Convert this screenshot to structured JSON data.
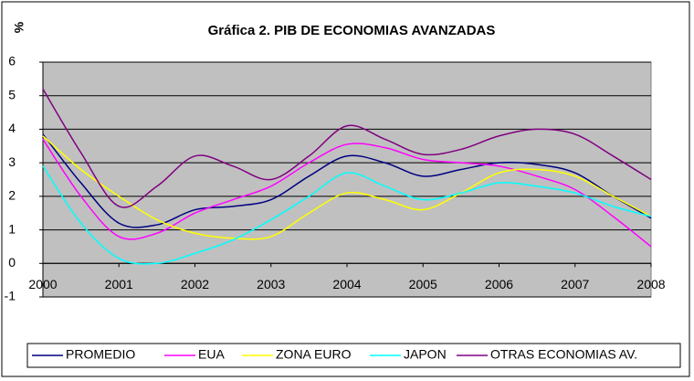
{
  "chart_data": {
    "type": "line",
    "title": "Gráfica 2. PIB DE ECONOMIAS AVANZADAS",
    "y_label": "%",
    "x": [
      2000,
      2000.5,
      2001,
      2001.5,
      2002,
      2002.5,
      2003,
      2003.5,
      2004,
      2004.5,
      2005,
      2005.5,
      2006,
      2006.5,
      2007,
      2007.5,
      2008
    ],
    "xlim": [
      2000,
      2008
    ],
    "xticks": [
      2000,
      2001,
      2002,
      2003,
      2004,
      2005,
      2006,
      2007,
      2008
    ],
    "ylim": [
      -1,
      6
    ],
    "yticks": [
      -1,
      0,
      1,
      2,
      3,
      4,
      5,
      6
    ],
    "grid": true,
    "legend": "bottom",
    "series": [
      {
        "name": "PROMEDIO",
        "color": "#000080",
        "values": [
          3.85,
          2.4,
          1.2,
          1.15,
          1.6,
          1.7,
          1.9,
          2.6,
          3.2,
          3.0,
          2.6,
          2.8,
          3.0,
          2.95,
          2.7,
          2.0,
          1.35
        ]
      },
      {
        "name": "EUA",
        "color": "#ff00ff",
        "values": [
          3.7,
          2.0,
          0.8,
          0.9,
          1.5,
          1.9,
          2.3,
          3.0,
          3.55,
          3.45,
          3.1,
          3.0,
          2.9,
          2.6,
          2.2,
          1.4,
          0.5
        ]
      },
      {
        "name": "ZONA EURO",
        "color": "#ffff00",
        "values": [
          3.8,
          2.8,
          2.0,
          1.3,
          0.9,
          0.75,
          0.8,
          1.5,
          2.1,
          1.9,
          1.6,
          2.1,
          2.7,
          2.8,
          2.6,
          2.0,
          1.4
        ]
      },
      {
        "name": "JAPON",
        "color": "#00ffff",
        "values": [
          2.9,
          1.2,
          0.15,
          0.0,
          0.3,
          0.7,
          1.3,
          2.0,
          2.7,
          2.3,
          1.9,
          2.1,
          2.4,
          2.3,
          2.1,
          1.7,
          1.4
        ]
      },
      {
        "name": "OTRAS ECONOMIAS AV.",
        "color": "#800080",
        "values": [
          5.2,
          3.3,
          1.7,
          2.3,
          3.2,
          2.9,
          2.5,
          3.2,
          4.1,
          3.7,
          3.25,
          3.4,
          3.8,
          4.0,
          3.85,
          3.2,
          2.5
        ]
      }
    ]
  }
}
